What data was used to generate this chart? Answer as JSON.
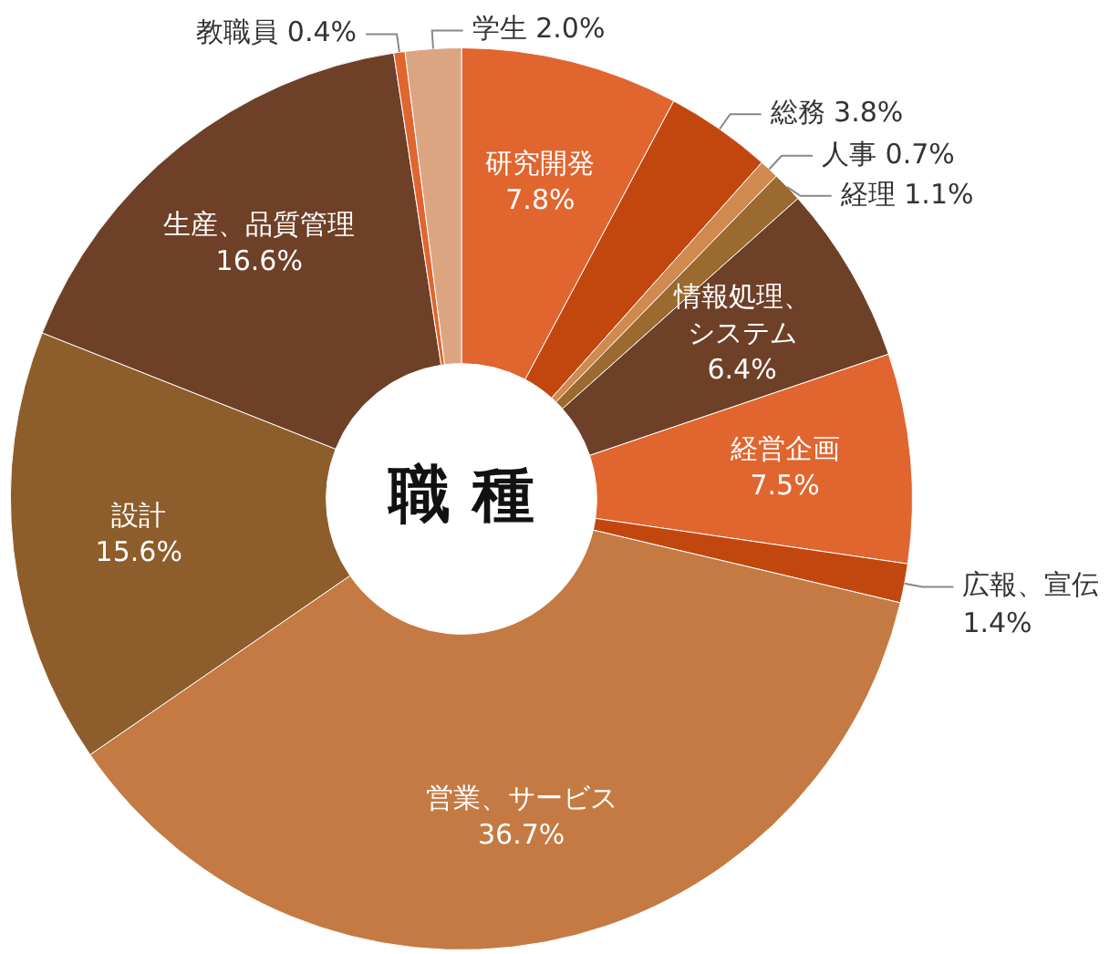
{
  "chart_data": {
    "type": "donut",
    "title": "職 種",
    "categories": [
      "研究開発",
      "総務",
      "人事",
      "経理",
      "情報処理、システム",
      "経営企画",
      "広報、宣伝",
      "営業、サービス",
      "設計",
      "生産、品質管理",
      "教職員",
      "学生"
    ],
    "values": [
      7.8,
      3.8,
      0.7,
      1.1,
      6.4,
      7.5,
      1.4,
      36.7,
      15.6,
      16.6,
      0.4,
      2.0
    ],
    "value_labels": [
      "7.8%",
      "3.8%",
      "0.7%",
      "1.1%",
      "6.4%",
      "7.5%",
      "1.4%",
      "36.7%",
      "15.6%",
      "16.6%",
      "0.4%",
      "2.0%"
    ],
    "colors": [
      "#e0652f",
      "#c2470f",
      "#d0894f",
      "#9b6a2f",
      "#6e4028",
      "#e0652f",
      "#c2470f",
      "#c47a42",
      "#8d5e2b",
      "#6e4028",
      "#e0652f",
      "#dca582"
    ],
    "legend": false
  }
}
